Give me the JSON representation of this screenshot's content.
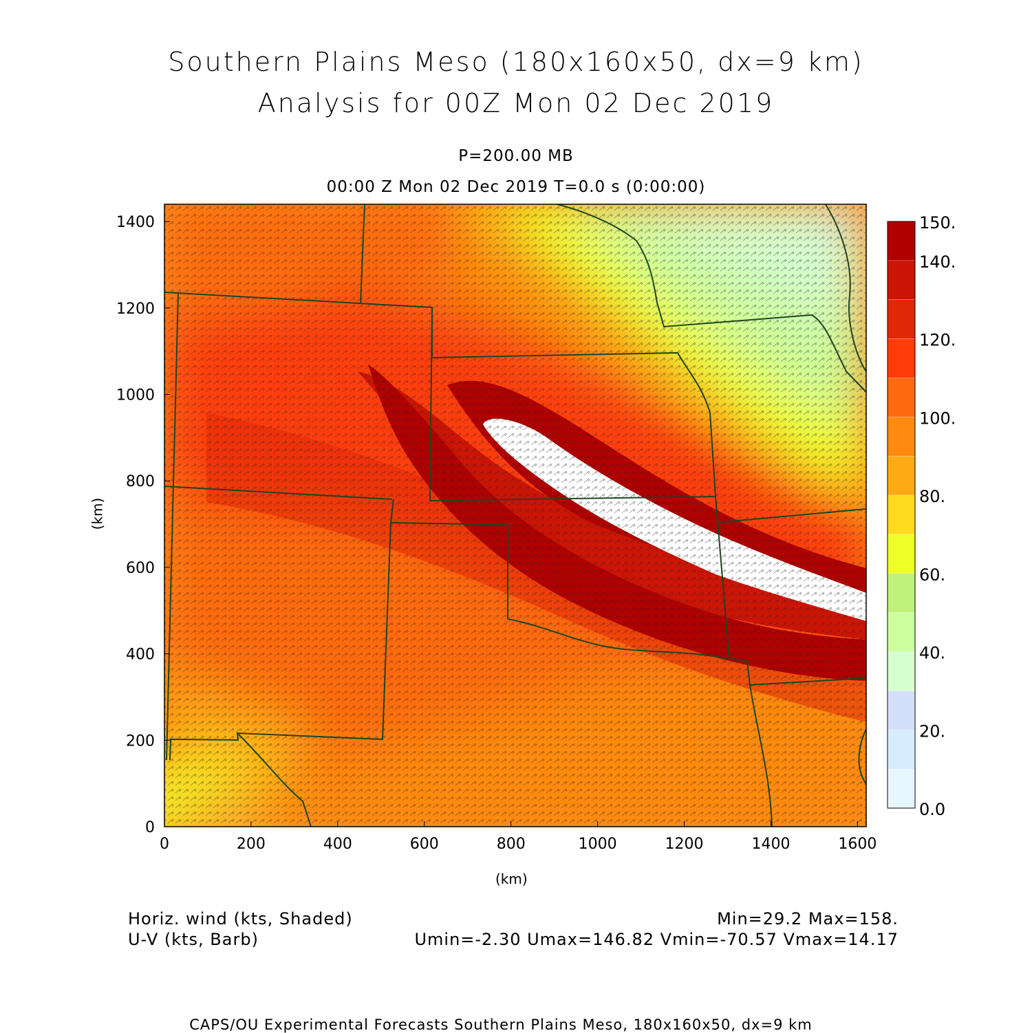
{
  "title": {
    "line1": "Southern Plains Meso (180x160x50, dx=9 km)",
    "line2": "Analysis for 00Z Mon 02 Dec 2019"
  },
  "level": "P=200.00 MB",
  "time": "00:00 Z Mon 02 Dec 2019    T=0.0 s (0:00:00)",
  "x_axis": {
    "label": "(km)",
    "ticks": [
      0,
      200,
      400,
      600,
      800,
      1000,
      1200,
      1400,
      1600
    ]
  },
  "y_axis": {
    "label": "(km)",
    "ticks": [
      0,
      200,
      400,
      600,
      800,
      1000,
      1200,
      1400
    ]
  },
  "colorbar": {
    "labels": [
      "150.",
      "140.",
      "120.",
      "100.",
      "80.",
      "60.",
      "40.",
      "20.",
      "0.0"
    ],
    "levels": [
      0,
      10,
      20,
      30,
      40,
      50,
      60,
      70,
      80,
      90,
      100,
      110,
      120,
      130,
      140,
      150
    ],
    "colors": [
      "#e8f6ff",
      "#d6ecff",
      "#d4e0fa",
      "#d6ffd0",
      "#ccff9e",
      "#bff07a",
      "#eeff28",
      "#ffd91e",
      "#ffaa14",
      "#ff8a10",
      "#ff6a10",
      "#ff3c0a",
      "#e02808",
      "#cc1404",
      "#b00000"
    ]
  },
  "legend": {
    "field1": "Horiz. wind (kts, Shaded)",
    "field2": "U-V (kts, Barb)",
    "minmax": "Min=29.2 Max=158.",
    "uvstats": "Umin=-2.30 Umax=146.82 Vmin=-70.57 Vmax=14.17"
  },
  "footer": "CAPS/OU Experimental Forecasts  Southern Plains Meso, 180x160x50, dx=9 km",
  "chart_data": {
    "type": "heatmap",
    "x_range_km": [
      0,
      1620
    ],
    "y_range_km": [
      0,
      1440
    ],
    "field": "Horizontal wind speed at 200 mb (kts)",
    "min": 29.2,
    "max": 158,
    "jet_core_over_150": true
  },
  "colors": {
    "state_lines": "#1e4422",
    "barbs": "#2a2a2a"
  }
}
